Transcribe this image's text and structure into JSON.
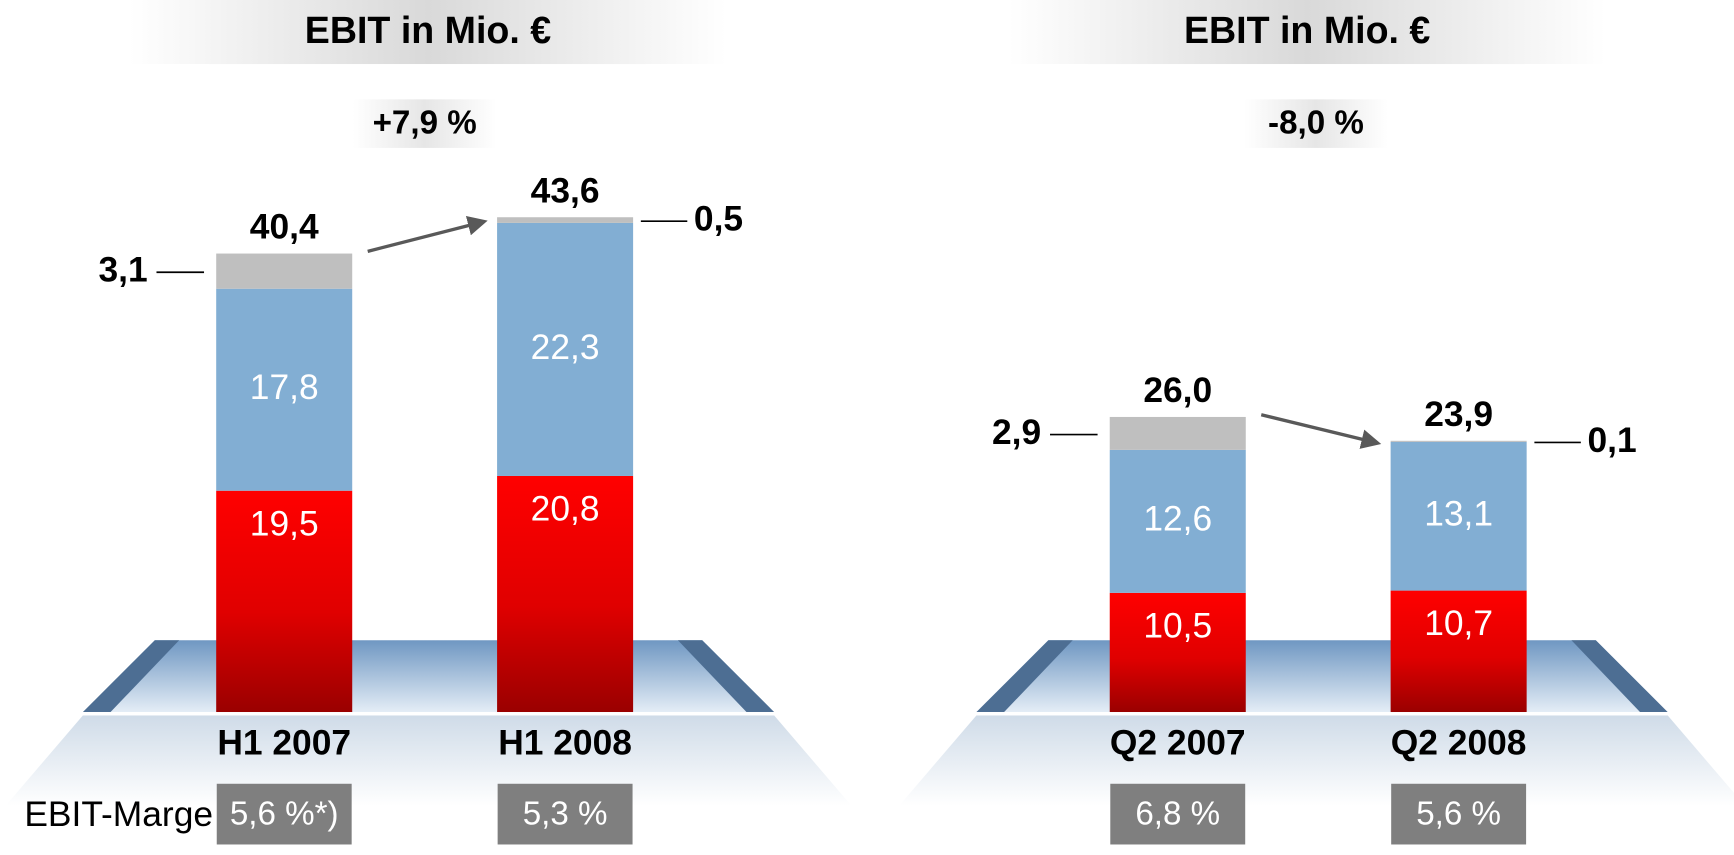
{
  "chart_data": [
    {
      "type": "bar",
      "stacked": true,
      "title": "EBIT in Mio. €",
      "change": "+7,9 %",
      "margin_label": "EBIT-Marge",
      "categories": [
        "H1 2007",
        "H1 2008"
      ],
      "series": [
        {
          "color": "#ff0000",
          "values": [
            19.5,
            20.8
          ],
          "value_labels": [
            "19,5",
            "20,8"
          ]
        },
        {
          "color": "#82aed3",
          "values": [
            17.8,
            22.3
          ],
          "value_labels": [
            "17,8",
            "22,3"
          ]
        },
        {
          "color": "#bfbfbf",
          "values": [
            3.1,
            0.5
          ],
          "value_labels": [
            "3,1",
            "0,5"
          ]
        }
      ],
      "totals": {
        "values": [
          40.4,
          43.6
        ],
        "value_labels": [
          "40,4",
          "43,6"
        ]
      },
      "margins": [
        "5,6 %*)",
        "5,3 %"
      ]
    },
    {
      "type": "bar",
      "stacked": true,
      "title": "EBIT in Mio. €",
      "change": "-8,0 %",
      "categories": [
        "Q2 2007",
        "Q2 2008"
      ],
      "series": [
        {
          "color": "#ff0000",
          "values": [
            10.5,
            10.7
          ],
          "value_labels": [
            "10,5",
            "10,7"
          ]
        },
        {
          "color": "#82aed3",
          "values": [
            12.6,
            13.1
          ],
          "value_labels": [
            "12,6",
            "13,1"
          ]
        },
        {
          "color": "#bfbfbf",
          "values": [
            2.9,
            0.1
          ],
          "value_labels": [
            "2,9",
            "0,1"
          ]
        }
      ],
      "totals": {
        "values": [
          26.0,
          23.9
        ],
        "value_labels": [
          "26,0",
          "23,9"
        ]
      },
      "margins": [
        "6,8 %",
        "5,6 %"
      ]
    }
  ]
}
